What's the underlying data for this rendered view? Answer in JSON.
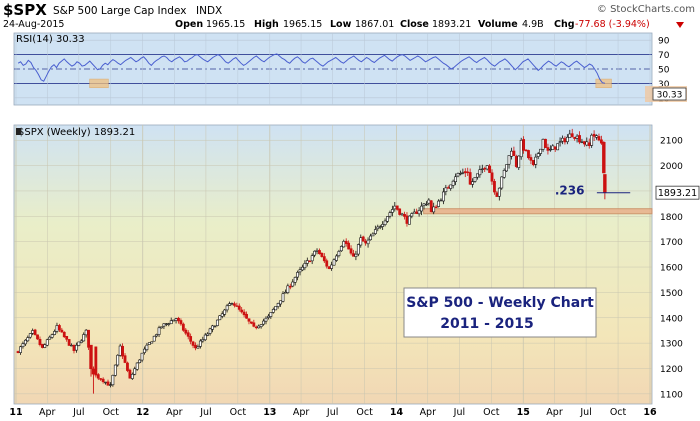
{
  "header": {
    "symbol": "$SPX",
    "name": "S&P 500 Large Cap Index",
    "exchange": "INDX",
    "date": "24-Aug-2015",
    "watermark": "© StockCharts.com",
    "quote": {
      "open_label": "Open",
      "open": "1965.15",
      "high_label": "High",
      "high": "1965.15",
      "low_label": "Low",
      "low": "1867.01",
      "close_label": "Close",
      "close": "1893.21",
      "volume_label": "Volume",
      "volume": "4.9B",
      "chg_label": "Chg",
      "chg": "-77.68 (-3.94%)"
    }
  },
  "chart_data": [
    {
      "type": "line",
      "title": "RSI(14) 30.33",
      "indicator": "RSI(14)",
      "last_value": "30.33",
      "yticks": [
        "90",
        "70",
        "50",
        "30",
        "10"
      ],
      "overbought": 70,
      "oversold": 30,
      "midline": 50,
      "ylim": [
        0,
        100
      ],
      "color": "#4a5fd0",
      "values": [
        58,
        60,
        55,
        57,
        62,
        59,
        52,
        48,
        42,
        35,
        33,
        40,
        47,
        53,
        56,
        52,
        58,
        61,
        64,
        60,
        57,
        54,
        56,
        60,
        58,
        54,
        55,
        58,
        61,
        57,
        53,
        49,
        50,
        55,
        58,
        56,
        60,
        63,
        61,
        58,
        56,
        59,
        62,
        64,
        66,
        63,
        60,
        62,
        65,
        67,
        63,
        58,
        55,
        59,
        62,
        64,
        67,
        68,
        66,
        62,
        60,
        63,
        65,
        67,
        64,
        60,
        61,
        64,
        66,
        69,
        70,
        67,
        64,
        62,
        60,
        63,
        66,
        68,
        70,
        68,
        64,
        60,
        58,
        61,
        64,
        66,
        62,
        58,
        55,
        57,
        60,
        63,
        66,
        68,
        65,
        62,
        60,
        63,
        66,
        68,
        70,
        71,
        68,
        65,
        63,
        60,
        58,
        62,
        65,
        67,
        64,
        60,
        58,
        61,
        64,
        65,
        62,
        59,
        56,
        54,
        57,
        60,
        62,
        64,
        66,
        63,
        60,
        58,
        61,
        64,
        66,
        68,
        65,
        62,
        60,
        63,
        66,
        64,
        61,
        59,
        62,
        65,
        67,
        69,
        66,
        63,
        61,
        64,
        67,
        69,
        70,
        68,
        65,
        62,
        64,
        66,
        68,
        66,
        63,
        60,
        62,
        64,
        66,
        67,
        64,
        61,
        58,
        56,
        53,
        50,
        52,
        55,
        58,
        61,
        63,
        65,
        67,
        64,
        61,
        59,
        62,
        64,
        66,
        63,
        59,
        56,
        54,
        57,
        60,
        62,
        64,
        61,
        57,
        53,
        49,
        52,
        56,
        60,
        62,
        64,
        60,
        56,
        52,
        48,
        51,
        55,
        58,
        61,
        59,
        56,
        54,
        57,
        60,
        58,
        55,
        53,
        56,
        59,
        61,
        58,
        55,
        52,
        54,
        57,
        55,
        50,
        44,
        36,
        31,
        30.33
      ]
    },
    {
      "type": "candlestick",
      "title": "$SPX (Weekly) 1893.21",
      "x_tick_labels": [
        "11",
        "Apr",
        "Jul",
        "Oct",
        "12",
        "Apr",
        "Jul",
        "Oct",
        "13",
        "Apr",
        "Jul",
        "Oct",
        "14",
        "Apr",
        "Jul",
        "Oct",
        "15",
        "Apr",
        "Jul",
        "Oct",
        "16"
      ],
      "y_tick_labels": [
        "2100",
        "2000",
        "1900",
        "1800",
        "1700",
        "1600",
        "1500",
        "1400",
        "1300",
        "1200",
        "1100"
      ],
      "ylim": [
        1060,
        2160
      ],
      "last_close": "1893.21",
      "annotation_text": ".236",
      "annotation_level": 1893,
      "support_zone": [
        1810,
        1830
      ],
      "text_box_line1": "S&P 500 - Weekly Chart",
      "text_box_line2": "2011 - 2015",
      "anchors": [
        {
          "date": "2011-01-07",
          "close": 1270
        },
        {
          "date": "2011-02-18",
          "close": 1343
        },
        {
          "date": "2011-03-18",
          "close": 1279
        },
        {
          "date": "2011-04-29",
          "close": 1363
        },
        {
          "date": "2011-06-17",
          "close": 1271
        },
        {
          "date": "2011-07-22",
          "close": 1345
        },
        {
          "date": "2011-08-12",
          "close": 1178
        },
        {
          "date": "2011-09-09",
          "close": 1154
        },
        {
          "date": "2011-09-30",
          "close": 1131
        },
        {
          "date": "2011-10-28",
          "close": 1285
        },
        {
          "date": "2011-11-25",
          "close": 1158
        },
        {
          "date": "2011-12-30",
          "close": 1258
        },
        {
          "date": "2012-02-24",
          "close": 1366
        },
        {
          "date": "2012-04-06",
          "close": 1398
        },
        {
          "date": "2012-06-01",
          "close": 1278
        },
        {
          "date": "2012-07-20",
          "close": 1362
        },
        {
          "date": "2012-09-14",
          "close": 1465
        },
        {
          "date": "2012-11-16",
          "close": 1359
        },
        {
          "date": "2012-12-28",
          "close": 1402
        },
        {
          "date": "2013-03-15",
          "close": 1560
        },
        {
          "date": "2013-05-17",
          "close": 1667
        },
        {
          "date": "2013-06-21",
          "close": 1592
        },
        {
          "date": "2013-08-02",
          "close": 1709
        },
        {
          "date": "2013-08-30",
          "close": 1633
        },
        {
          "date": "2013-09-20",
          "close": 1710
        },
        {
          "date": "2013-10-04",
          "close": 1690
        },
        {
          "date": "2013-12-27",
          "close": 1841
        },
        {
          "date": "2014-01-31",
          "close": 1782
        },
        {
          "date": "2014-04-04",
          "close": 1865
        },
        {
          "date": "2014-04-11",
          "close": 1815
        },
        {
          "date": "2014-06-20",
          "close": 1962
        },
        {
          "date": "2014-07-25",
          "close": 1978
        },
        {
          "date": "2014-08-01",
          "close": 1925
        },
        {
          "date": "2014-09-19",
          "close": 2010
        },
        {
          "date": "2014-10-10",
          "close": 1906
        },
        {
          "date": "2014-10-17",
          "close": 1886
        },
        {
          "date": "2014-11-28",
          "close": 2067
        },
        {
          "date": "2014-12-12",
          "close": 2002
        },
        {
          "date": "2014-12-26",
          "close": 2088
        },
        {
          "date": "2015-01-30",
          "close": 1995
        },
        {
          "date": "2015-02-27",
          "close": 2104
        },
        {
          "date": "2015-03-13",
          "close": 2053
        },
        {
          "date": "2015-05-22",
          "close": 2126
        },
        {
          "date": "2015-07-10",
          "close": 2076
        },
        {
          "date": "2015-07-17",
          "close": 2126
        },
        {
          "date": "2015-08-14",
          "close": 2091
        },
        {
          "date": "2015-08-21",
          "close": 1971
        },
        {
          "date": "2015-08-24",
          "close": 1893
        }
      ],
      "big_red_candles": [
        {
          "date": "2011-08-05",
          "open": 1292,
          "high": 1292,
          "low": 1168,
          "close": 1199
        },
        {
          "date": "2011-08-12",
          "open": 1198,
          "high": 1208,
          "low": 1101,
          "close": 1178
        },
        {
          "date": "2015-08-21",
          "open": 2092,
          "high": 2096,
          "low": 1970,
          "close": 1971
        },
        {
          "date": "2015-08-24",
          "open": 1965,
          "high": 1965,
          "low": 1867,
          "close": 1893
        }
      ]
    }
  ]
}
